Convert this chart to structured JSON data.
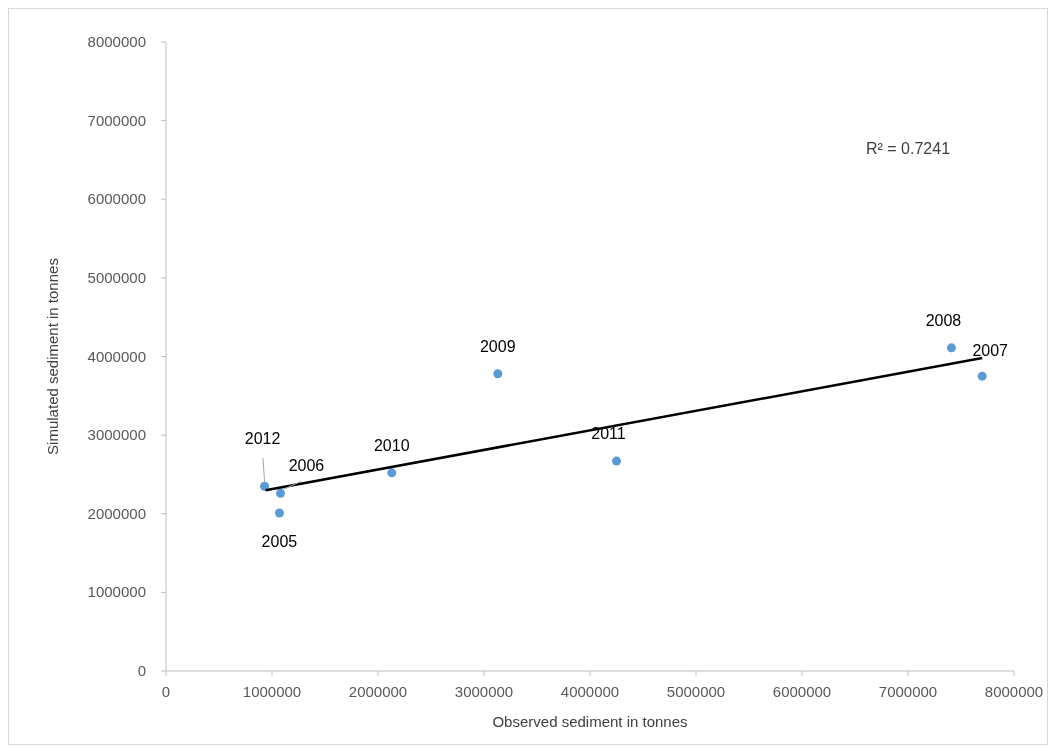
{
  "chart_data": {
    "type": "scatter",
    "xlabel": "Observed sediment in tonnes",
    "ylabel": "Simulated sediment in tonnes",
    "xlim": [
      0,
      8000000
    ],
    "ylim": [
      0,
      8000000
    ],
    "xticks": [
      0,
      1000000,
      2000000,
      3000000,
      4000000,
      5000000,
      6000000,
      7000000,
      8000000
    ],
    "yticks": [
      0,
      1000000,
      2000000,
      3000000,
      4000000,
      5000000,
      6000000,
      7000000,
      8000000
    ],
    "grid": false,
    "series": [
      {
        "color": "#5b9bd5",
        "marker": "circle",
        "x": [
          1070000,
          1080000,
          7700000,
          7410000,
          3130000,
          2130000,
          4250000,
          930000
        ],
        "values": [
          2010000,
          2260000,
          3750000,
          4110000,
          3780000,
          2520000,
          2670000,
          2350000
        ]
      },
      {
        "type": "line",
        "color": "#000000",
        "marker": "none",
        "x": [
          940000,
          7700000
        ],
        "values": [
          2300000,
          3980000
        ]
      }
    ],
    "annotations": [
      {
        "text": "2005",
        "x": 1070000,
        "y": 2010000
      },
      {
        "text": "2006",
        "x": 1080000,
        "y": 2260000
      },
      {
        "text": "2007",
        "x": 7700000,
        "y": 3750000
      },
      {
        "text": "2008",
        "x": 7410000,
        "y": 4110000
      },
      {
        "text": "2009",
        "x": 3130000,
        "y": 3780000
      },
      {
        "text": "2010",
        "x": 2130000,
        "y": 2520000
      },
      {
        "text": "2011",
        "x": 4250000,
        "y": 2670000
      },
      {
        "text": "2012",
        "x": 930000,
        "y": 2350000
      },
      "R² = 0.7241"
    ]
  }
}
